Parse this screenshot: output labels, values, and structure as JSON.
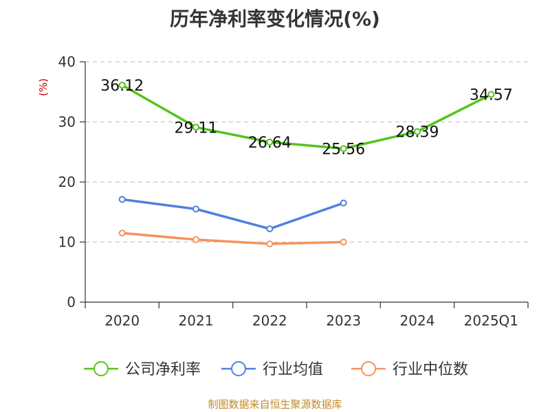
{
  "chart_data": {
    "type": "line",
    "title": "历年净利率变化情况(%)",
    "ylabel": "(%)",
    "xlabel": "",
    "categories": [
      "2020",
      "2021",
      "2022",
      "2023",
      "2024",
      "2025Q1"
    ],
    "ylim": [
      0,
      40
    ],
    "yticks": [
      0,
      10,
      20,
      30,
      40
    ],
    "grid": true,
    "legend_position": "bottom",
    "series": [
      {
        "name": "公司净利率",
        "color": "#52c41a",
        "show_labels": true,
        "labels": [
          "36.12",
          "29.11",
          "26.64",
          "25.56",
          "28.39",
          "34.57"
        ],
        "values": [
          36.12,
          29.11,
          26.64,
          25.56,
          28.39,
          34.57
        ]
      },
      {
        "name": "行业均值",
        "color": "#4f7fe0",
        "show_labels": false,
        "values": [
          17.1,
          15.5,
          12.2,
          16.5,
          null,
          null
        ]
      },
      {
        "name": "行业中位数",
        "color": "#f7925c",
        "show_labels": false,
        "values": [
          11.5,
          10.4,
          9.7,
          10.0,
          null,
          null
        ]
      }
    ]
  },
  "footer": "制图数据来自恒生聚源数据库"
}
